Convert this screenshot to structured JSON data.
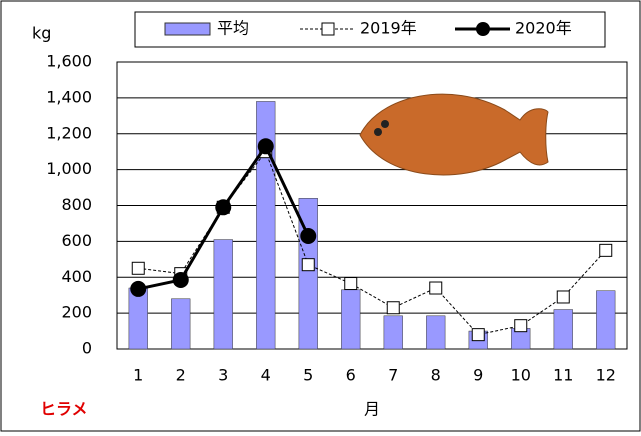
{
  "chart_data": {
    "type": "bar-line",
    "y_label": "kg",
    "x_label": "月",
    "annotation": "ヒラメ",
    "categories": [
      "1",
      "2",
      "3",
      "4",
      "5",
      "6",
      "7",
      "8",
      "9",
      "10",
      "11",
      "12"
    ],
    "series": [
      {
        "name": "平均",
        "type": "bar",
        "color": "#9999ff",
        "values": [
          340,
          280,
          610,
          1380,
          840,
          330,
          185,
          185,
          100,
          115,
          220,
          325
        ]
      },
      {
        "name": "2019年",
        "type": "line",
        "style": "dashed-open-square",
        "color": "#000000",
        "values": [
          450,
          420,
          790,
          1100,
          470,
          365,
          230,
          340,
          80,
          130,
          290,
          550
        ]
      },
      {
        "name": "2020年",
        "type": "line",
        "style": "solid-filled-circle",
        "color": "#000000",
        "values": [
          335,
          385,
          790,
          1130,
          630,
          null,
          null,
          null,
          null,
          null,
          null,
          null
        ]
      }
    ],
    "ylim": [
      0,
      1600
    ],
    "yticks": [
      0,
      200,
      400,
      600,
      800,
      {
        "value": 1000,
        "label": "1,000"
      },
      {
        "value": 1200,
        "label": "1,200"
      },
      {
        "value": 1400,
        "label": "1,400"
      },
      {
        "value": 1600,
        "label": "1,600"
      }
    ],
    "grid": true
  }
}
